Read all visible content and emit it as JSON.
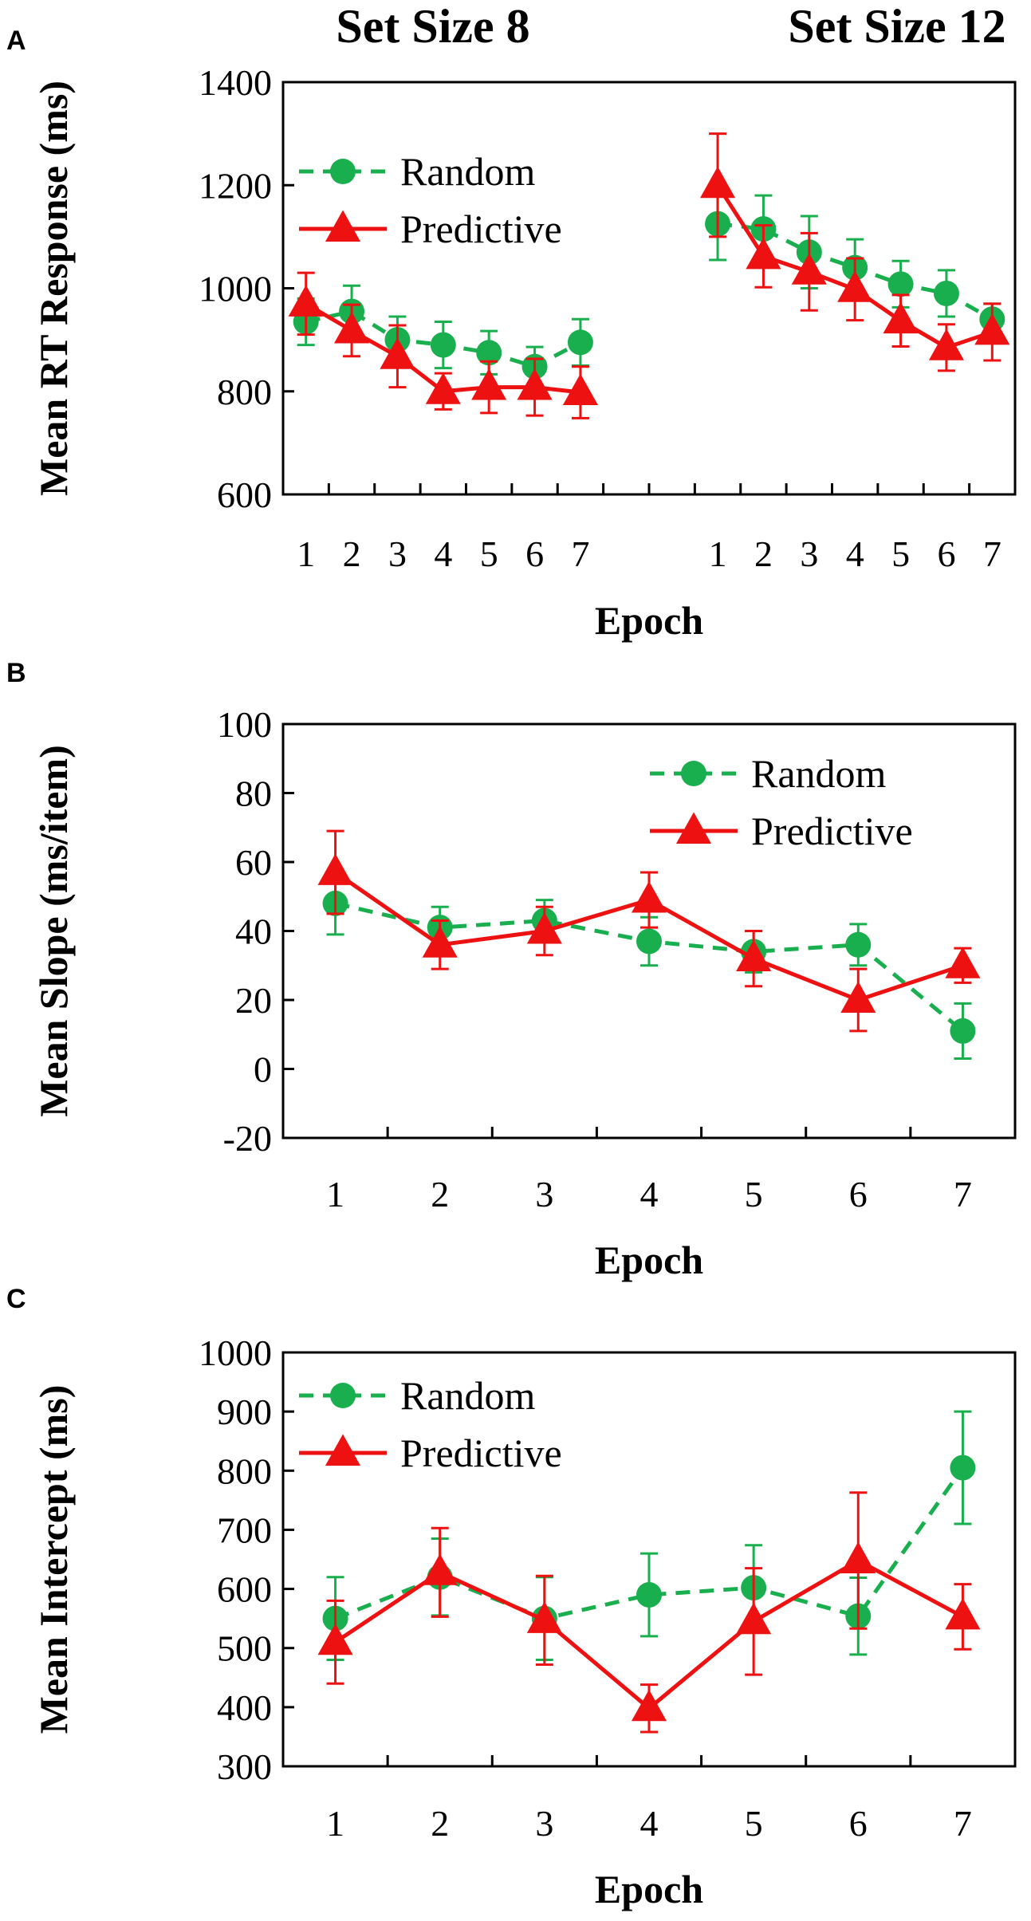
{
  "colors": {
    "random": "#1aaf4e",
    "predictive": "#ee1111",
    "axis": "#000000"
  },
  "chart_data": [
    {
      "panel": "A",
      "type": "line",
      "ylabel": "Mean RT Response (ms)",
      "xlabel": "Epoch",
      "ylim": [
        600,
        1400
      ],
      "yticks": [
        "600",
        "800",
        "1000",
        "1200",
        "1400"
      ],
      "yticks_values": [
        600,
        800,
        1000,
        1200,
        1400
      ],
      "groups": [
        {
          "title": "Set Size 8",
          "categories": [
            "1",
            "2",
            "3",
            "4",
            "5",
            "6",
            "7"
          ],
          "series": [
            {
              "name": "Random",
              "values": [
                935,
                955,
                900,
                890,
                875,
                848,
                895
              ],
              "errors": [
                45,
                50,
                45,
                45,
                42,
                38,
                45
              ]
            },
            {
              "name": "Predictive",
              "values": [
                970,
                918,
                868,
                800,
                808,
                808,
                798
              ],
              "errors": [
                60,
                50,
                60,
                35,
                50,
                55,
                50
              ]
            }
          ]
        },
        {
          "title": "Set Size 12",
          "categories": [
            "1",
            "2",
            "3",
            "4",
            "5",
            "6",
            "7"
          ],
          "series": [
            {
              "name": "Random",
              "values": [
                1125,
                1115,
                1070,
                1040,
                1008,
                990,
                940
              ],
              "errors": [
                70,
                65,
                70,
                55,
                45,
                45,
                30
              ]
            },
            {
              "name": "Predictive",
              "values": [
                1200,
                1062,
                1032,
                998,
                937,
                885,
                915
              ],
              "errors": [
                100,
                60,
                75,
                60,
                50,
                45,
                55
              ]
            }
          ]
        }
      ],
      "legend": [
        "Random",
        "Predictive"
      ],
      "legend_position": "top-left"
    },
    {
      "panel": "B",
      "type": "line",
      "ylabel": "Mean Slope (ms/item)",
      "xlabel": "Epoch",
      "ylim": [
        -20,
        100
      ],
      "yticks": [
        "-20",
        "0",
        "20",
        "40",
        "60",
        "80",
        "100"
      ],
      "yticks_values": [
        -20,
        0,
        20,
        40,
        60,
        80,
        100
      ],
      "categories": [
        "1",
        "2",
        "3",
        "4",
        "5",
        "6",
        "7"
      ],
      "series": [
        {
          "name": "Random",
          "values": [
            48,
            41,
            43,
            37,
            34,
            36,
            11
          ],
          "errors": [
            9,
            6,
            6,
            7,
            6,
            6,
            8
          ]
        },
        {
          "name": "Predictive",
          "values": [
            57,
            36,
            40,
            49,
            32,
            20,
            30
          ],
          "errors": [
            12,
            7,
            7,
            8,
            8,
            9,
            5
          ]
        }
      ],
      "legend": [
        "Random",
        "Predictive"
      ],
      "legend_position": "top-right"
    },
    {
      "panel": "C",
      "type": "line",
      "ylabel": "Mean Intercept (ms)",
      "xlabel": "Epoch",
      "ylim": [
        300,
        1000
      ],
      "yticks": [
        "300",
        "400",
        "500",
        "600",
        "700",
        "800",
        "900",
        "1000"
      ],
      "yticks_values": [
        300,
        400,
        500,
        600,
        700,
        800,
        900,
        1000
      ],
      "categories": [
        "1",
        "2",
        "3",
        "4",
        "5",
        "6",
        "7"
      ],
      "series": [
        {
          "name": "Random",
          "values": [
            550,
            620,
            550,
            590,
            602,
            554,
            805
          ],
          "errors": [
            70,
            65,
            70,
            70,
            72,
            65,
            95
          ]
        },
        {
          "name": "Predictive",
          "values": [
            510,
            628,
            547,
            398,
            545,
            648,
            553
          ],
          "errors": [
            70,
            75,
            75,
            40,
            90,
            115,
            55
          ]
        }
      ],
      "legend": [
        "Random",
        "Predictive"
      ],
      "legend_position": "top-left"
    }
  ]
}
